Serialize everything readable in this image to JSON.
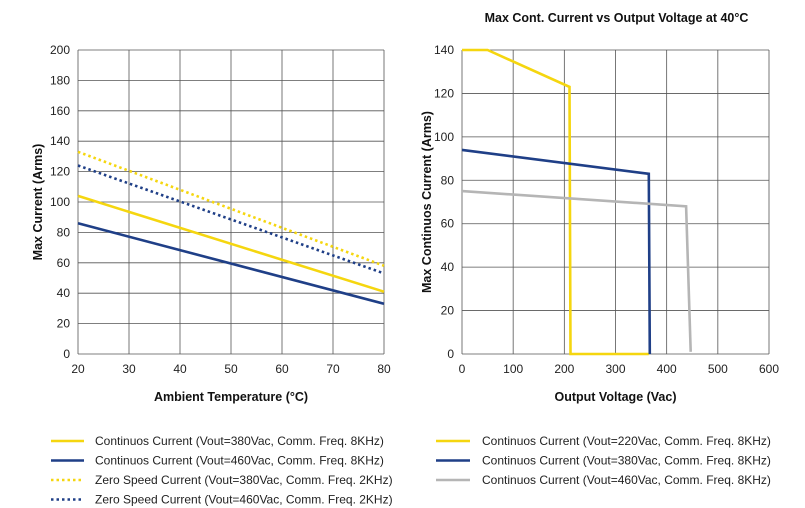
{
  "chart_data": [
    {
      "type": "line",
      "title": "",
      "xlabel": "Ambient Temperature (°C)",
      "ylabel": "Max Current (Arms)",
      "xlim": [
        20,
        80
      ],
      "ylim": [
        0,
        200
      ],
      "xticks": [
        20,
        30,
        40,
        50,
        60,
        70,
        80
      ],
      "yticks": [
        0,
        20,
        40,
        60,
        80,
        100,
        120,
        140,
        160,
        180,
        200
      ],
      "grid": true,
      "legend_position": "bottom",
      "series": [
        {
          "name": "Continuos Current (Vout=380Vac, Comm. Freq. 8KHz)",
          "color": "#f5d60f",
          "dash": "solid",
          "x": [
            20,
            80
          ],
          "y": [
            104,
            41
          ]
        },
        {
          "name": "Continuos Current (Vout=460Vac, Comm. Freq. 8KHz)",
          "color": "#1f3f87",
          "dash": "solid",
          "x": [
            20,
            80
          ],
          "y": [
            86,
            33
          ]
        },
        {
          "name": "Zero Speed Current (Vout=380Vac, Comm. Freq. 2KHz)",
          "color": "#f5d60f",
          "dash": "dotted",
          "x": [
            20,
            80
          ],
          "y": [
            133,
            58
          ]
        },
        {
          "name": "Zero Speed Current (Vout=460Vac, Comm. Freq. 2KHz)",
          "color": "#1f3f87",
          "dash": "dotted",
          "x": [
            20,
            80
          ],
          "y": [
            124,
            53
          ]
        }
      ]
    },
    {
      "type": "line",
      "title": "Max Cont. Current vs Output Voltage at 40°C",
      "xlabel": "Output Voltage (Vac)",
      "ylabel": "Max Continuos Current (Arms)",
      "xlim": [
        0,
        600
      ],
      "ylim": [
        0,
        140
      ],
      "xticks": [
        0,
        100,
        200,
        300,
        400,
        500,
        600
      ],
      "yticks": [
        0,
        20,
        40,
        60,
        80,
        100,
        120,
        140
      ],
      "grid": true,
      "legend_position": "bottom",
      "series": [
        {
          "name": "Continuos Current (Vout=220Vac, Comm. Freq. 8KHz)",
          "color": "#f5d60f",
          "dash": "solid",
          "x": [
            0,
            50,
            210,
            212,
            365
          ],
          "y": [
            140,
            140,
            123,
            0,
            0
          ]
        },
        {
          "name": "Continuos Current (Vout=380Vac, Comm. Freq. 8KHz)",
          "color": "#1f3f87",
          "dash": "solid",
          "x": [
            0,
            365,
            367
          ],
          "y": [
            94,
            83,
            0
          ]
        },
        {
          "name": "Continuos Current (Vout=460Vac, Comm. Freq. 8KHz)",
          "color": "#b5b5b5",
          "dash": "solid",
          "x": [
            0,
            438,
            447
          ],
          "y": [
            75,
            68,
            1
          ]
        }
      ]
    }
  ]
}
